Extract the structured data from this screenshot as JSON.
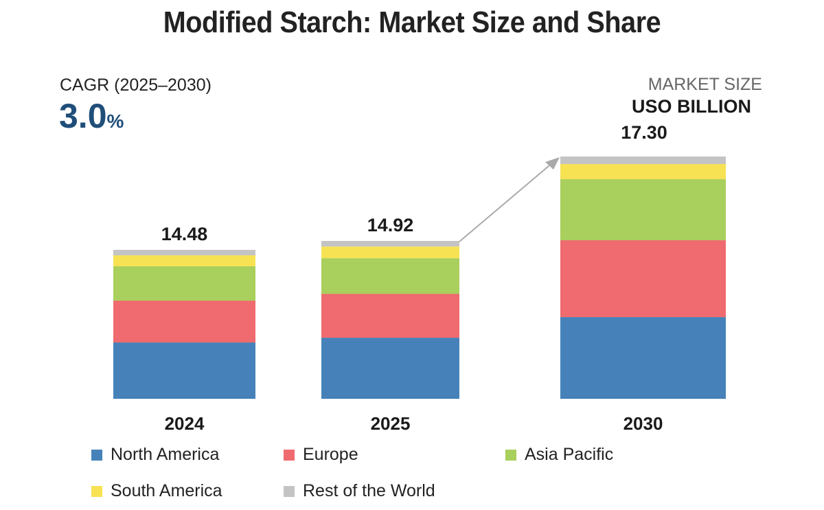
{
  "chart_data": {
    "type": "bar",
    "stacked": true,
    "title": "Modified Starch: Market Size and Share",
    "categories": [
      "2024",
      "2025",
      "2030"
    ],
    "totals": [
      "14.48",
      "14.92",
      "17.30"
    ],
    "series": [
      {
        "name": "North America",
        "color": "#4682b9",
        "values": [
          5.47,
          5.77,
          5.83
        ]
      },
      {
        "name": "Europe",
        "color": "#ef6b6f",
        "values": [
          4.07,
          4.15,
          5.49
        ]
      },
      {
        "name": "Asia Pacific",
        "color": "#a9cf5c",
        "values": [
          3.34,
          3.37,
          4.36
        ]
      },
      {
        "name": "South America",
        "color": "#f7e253",
        "values": [
          1.07,
          1.1,
          1.08
        ]
      },
      {
        "name": "Rest of the World",
        "color": "#c4c4c4",
        "values": [
          0.53,
          0.53,
          0.54
        ]
      }
    ],
    "grid": false,
    "legend": "bottom",
    "annotation_arrow": "2025 to 2030 growth"
  },
  "cagr": {
    "label": "CAGR (2025–2030)",
    "value": "3.0",
    "unit": "%"
  },
  "market_size": {
    "label": "MARKET SIZE",
    "unit": "USO BILLION"
  }
}
